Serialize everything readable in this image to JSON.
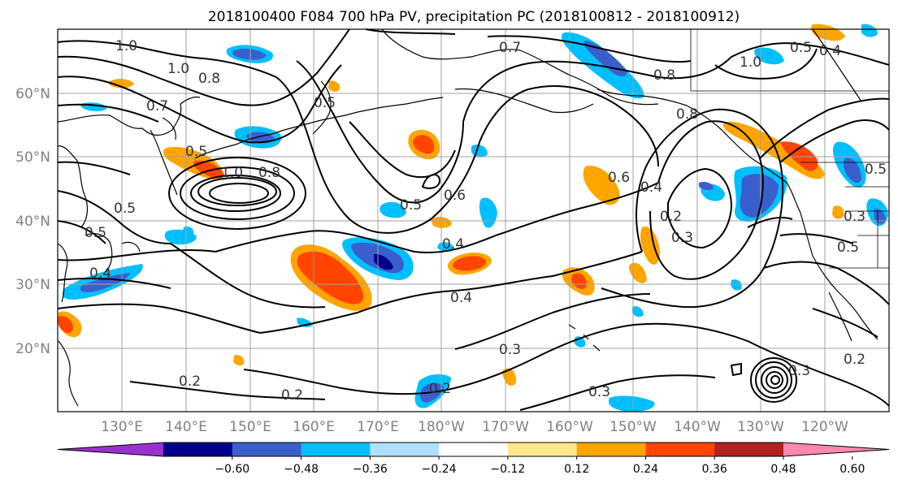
{
  "title": "2018100400 F084 700 hPa PV, precipitation PC (2018100812 - 2018100912)",
  "lat_labels": [
    "60°N",
    "50°N",
    "40°N",
    "30°N",
    "20°N"
  ],
  "lon_labels": [
    "130°E",
    "140°E",
    "150°E",
    "160°E",
    "170°E",
    "180°W",
    "170°W",
    "160°W",
    "150°W",
    "140°W",
    "130°W",
    "120°W"
  ],
  "contour_labels": [
    "1.0",
    "1.0",
    "0.8",
    "0.7",
    "0.5",
    "1.0",
    "0.8",
    "0.5",
    "0.5",
    "0.4",
    "0.5",
    "0.6",
    "0.4",
    "0.5",
    "0.4",
    "0.3",
    "0.2",
    "0.2",
    "0.3",
    "0.2",
    "0.6",
    "0.4",
    "0.2",
    "0.3",
    "0.7",
    "0.8",
    "0.8",
    "1.0",
    "0.5",
    "0.4",
    "0.3",
    "0.2",
    "0.5",
    "0.5",
    "0.3"
  ],
  "colorbar": {
    "colors": [
      "#9932cc",
      "#00008b",
      "#3a5fcd",
      "#00bfff",
      "#b0e0ff",
      "#ffffff",
      "#ffe98a",
      "#ffa500",
      "#ff4500",
      "#b22222",
      "#ff88b0"
    ],
    "tick_labels": [
      "−0.60",
      "−0.48",
      "−0.36",
      "−0.24",
      "−0.12",
      "0.12",
      "0.24",
      "0.36",
      "0.48",
      "0.60"
    ]
  }
}
